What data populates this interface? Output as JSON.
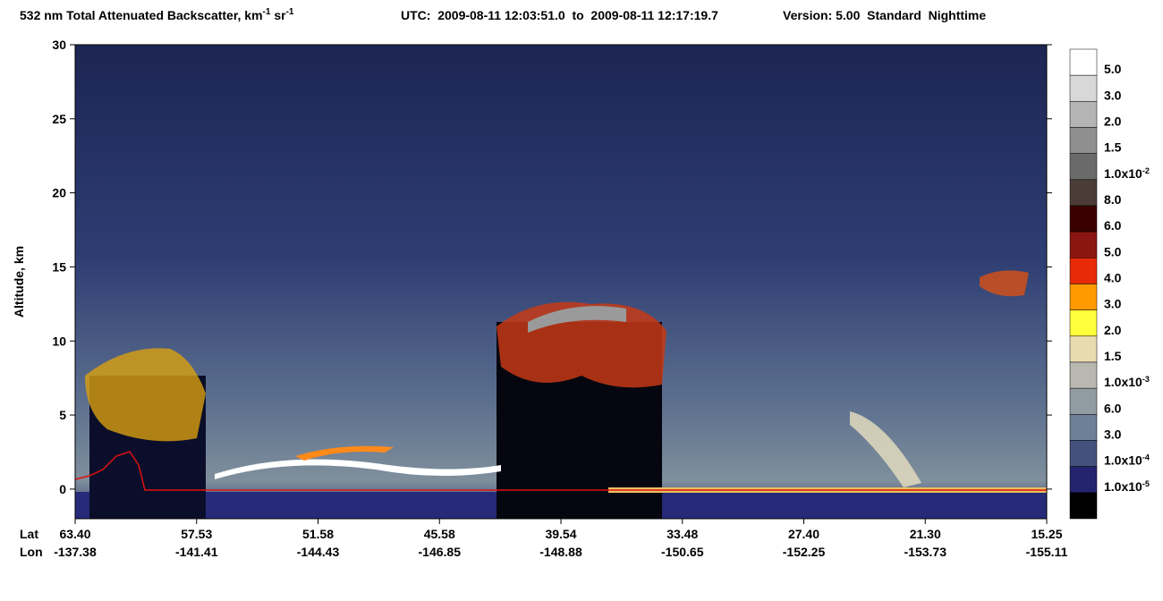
{
  "chart_data": {
    "type": "curtain",
    "title_parts": [
      "532 nm Total Attenuated Backscatter, km",
      "-1",
      " sr",
      "-1"
    ],
    "utc": "UTC:  2009-08-11 12:03:51.0  to  2009-08-11 12:17:19.7",
    "version": "Version: 5.00  Standard  Nighttime",
    "ylabel": "Altitude, km",
    "ylim": [
      -2,
      30
    ],
    "yticks": [
      0,
      5,
      10,
      15,
      20,
      25,
      30
    ],
    "x_row_labels": [
      "Lat",
      "Lon"
    ],
    "lat": [
      "63.40",
      "57.53",
      "51.58",
      "45.58",
      "39.54",
      "33.48",
      "27.40",
      "21.30",
      "15.25"
    ],
    "lon": [
      "-137.38",
      "-141.41",
      "-144.43",
      "-146.85",
      "-148.88",
      "-150.65",
      "-152.25",
      "-153.73",
      "-155.11"
    ],
    "colorbar": {
      "labels": [
        "5.0",
        "3.0",
        "2.0",
        "1.5",
        {
          "base": "1.0x10",
          "sup": "-2"
        },
        "8.0",
        "6.0",
        "5.0",
        "4.0",
        "3.0",
        "2.0",
        "1.5",
        {
          "base": "1.0x10",
          "sup": "-3"
        },
        "6.0",
        "3.0",
        {
          "base": "1.0x10",
          "sup": "-4"
        },
        {
          "base": "1.0x10",
          "sup": "-5"
        }
      ],
      "colors": [
        "#ffffff",
        "#d8d8d8",
        "#b4b4b4",
        "#8f8f8f",
        "#6a6a6a",
        "#4b3c37",
        "#3a0000",
        "#8b1510",
        "#e82a0a",
        "#ff9a00",
        "#ffff3c",
        "#e9dbb0",
        "#b8b8b0",
        "#909ca2",
        "#6d8096",
        "#44507e",
        "#23236e",
        "#000000"
      ]
    }
  }
}
